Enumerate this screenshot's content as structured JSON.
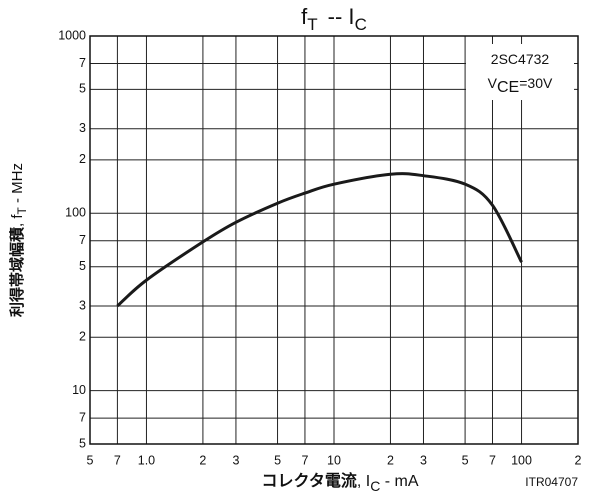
{
  "chart_data": {
    "type": "line",
    "title": {
      "main": "f",
      "main_sub": "T",
      "sep": "--  I",
      "sep_sub": "C"
    },
    "annotation": {
      "model": "2SC4732",
      "cond": "V",
      "cond_sub": "CE",
      "cond_rest": "=30V"
    },
    "y_label": {
      "main": "利得帯域幅積",
      "sym": ", f",
      "sub": "T",
      "unit": " - MHz"
    },
    "x_label": {
      "main": "コレクタ電流",
      "sym": ", I",
      "sub": "C",
      "unit": " - mA"
    },
    "code": "ITR04707",
    "x_log": true,
    "y_log": true,
    "grid": true,
    "color": "#1a1a1a",
    "xlim": [
      0.5,
      200
    ],
    "ylim": [
      5,
      1000
    ],
    "xticks": [
      {
        "value": 0.5,
        "label": "5"
      },
      {
        "value": 0.7,
        "label": "7"
      },
      {
        "value": 1,
        "label": "1.0"
      },
      2,
      3,
      5,
      7,
      10,
      {
        "value": 20,
        "label": "2"
      },
      {
        "value": 30,
        "label": "3"
      },
      {
        "value": 50,
        "label": "5"
      },
      {
        "value": 70,
        "label": "7"
      },
      100,
      {
        "value": 200,
        "label": "2"
      }
    ],
    "yticks": [
      {
        "value": 5,
        "label": "5"
      },
      {
        "value": 7,
        "label": "7"
      },
      10,
      {
        "value": 20,
        "label": "2"
      },
      {
        "value": 30,
        "label": "3"
      },
      {
        "value": 50,
        "label": "5"
      },
      {
        "value": 70,
        "label": "7"
      },
      100,
      {
        "value": 200,
        "label": "2"
      },
      {
        "value": 300,
        "label": "3"
      },
      {
        "value": 500,
        "label": "5"
      },
      {
        "value": 700,
        "label": "7"
      },
      1000
    ],
    "x": [
      0.7,
      1,
      2,
      3,
      5,
      7,
      10,
      20,
      30,
      50,
      70,
      100
    ],
    "values": [
      30,
      42,
      69,
      89,
      114,
      130,
      146,
      166,
      163,
      146,
      111,
      53
    ]
  }
}
